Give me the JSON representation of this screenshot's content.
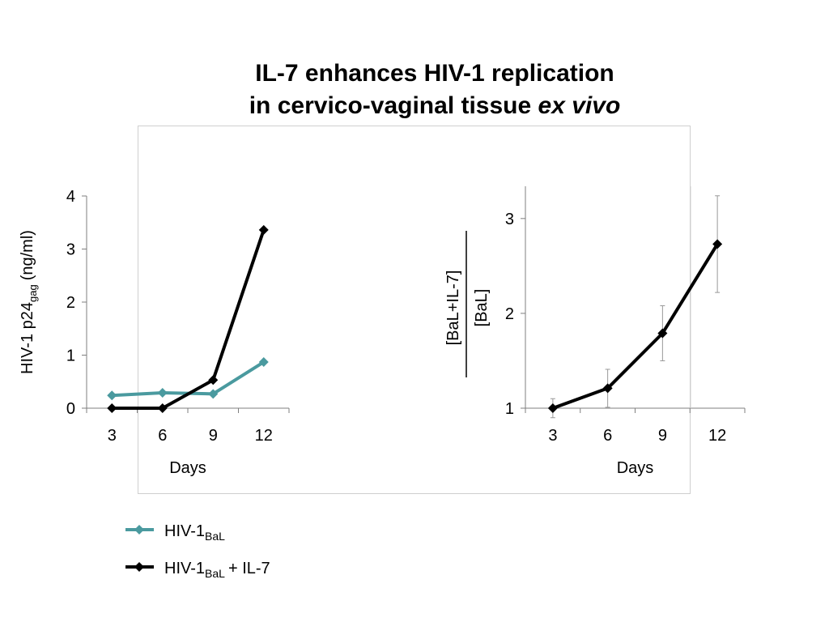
{
  "title": {
    "line1": "IL-7 enhances HIV-1 replication",
    "line2": "in cervico-vaginal tissue",
    "line2_italic": "ex vivo"
  },
  "chart_data": [
    {
      "type": "line",
      "categories": [
        "3",
        "6",
        "9",
        "12"
      ],
      "xlabel": "Days",
      "ylabel": {
        "main": "HIV-1 p24",
        "sub": "gag",
        "unit": "(ng/ml)"
      },
      "ylim": [
        0,
        4
      ],
      "yticks": [
        0,
        1,
        2,
        3,
        4
      ],
      "series": [
        {
          "name": "HIV-1",
          "name_sub": "BaL",
          "color": "#4a9a9f",
          "values": [
            0.24,
            0.29,
            0.27,
            0.87
          ]
        },
        {
          "name": "HIV-1",
          "name_sub": "BaL",
          "name_suffix": "+ IL-7",
          "color": "#000000",
          "values": [
            0,
            0,
            0.53,
            3.36
          ]
        }
      ]
    },
    {
      "type": "errorline",
      "categories": [
        "3",
        "6",
        "9",
        "12"
      ],
      "xlabel": "Days",
      "ylabel": {
        "numerator": "[BaL+IL-7]",
        "denominator": "[BaL]"
      },
      "ylim": [
        1,
        3.34
      ],
      "yticks": [
        1,
        2,
        3
      ],
      "color": "#000000",
      "values": [
        1,
        1.21,
        1.79,
        2.73
      ],
      "errors": [
        0.1,
        0.2,
        0.29,
        0.51
      ]
    }
  ]
}
